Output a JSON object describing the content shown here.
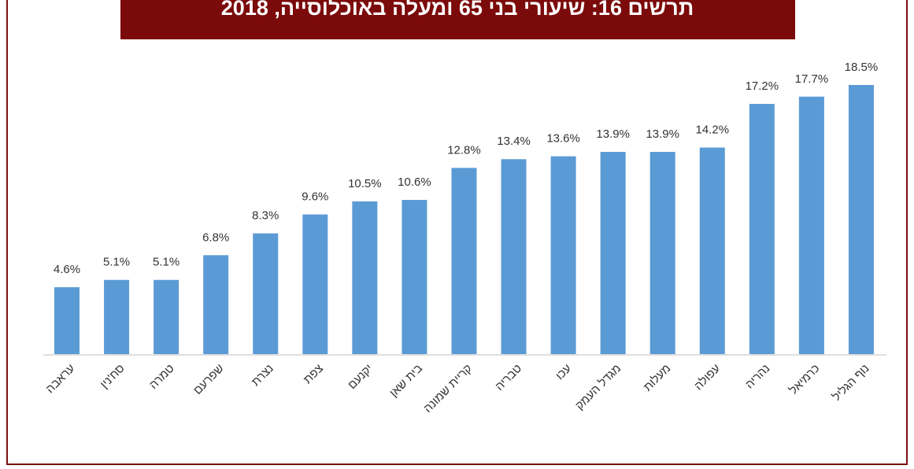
{
  "chart_data": {
    "type": "bar",
    "title": "תרשים 16: שיעורי בני 65 ומעלה באוכלוסייה, 2018",
    "categories": [
      "עראבה",
      "סח'נין",
      "טמרה",
      "שפרעם",
      "נצרת",
      "צפת",
      "יקנעם",
      "בית שאן",
      "קריית שמונה",
      "טבריה",
      "עכו",
      "מגדל העמק",
      "מעלות",
      "עפולה",
      "נהריה",
      "כרמיאל",
      "נוף הגליל"
    ],
    "values": [
      4.6,
      5.1,
      5.1,
      6.8,
      8.3,
      9.6,
      10.5,
      10.6,
      12.8,
      13.4,
      13.6,
      13.9,
      13.9,
      14.2,
      17.2,
      17.7,
      18.5
    ],
    "value_labels": [
      "4.6%",
      "5.1%",
      "5.1%",
      "6.8%",
      "8.3%",
      "9.6%",
      "10.5%",
      "10.6%",
      "12.8%",
      "13.4%",
      "13.6%",
      "13.9%",
      "13.9%",
      "14.2%",
      "17.2%",
      "17.7%",
      "18.5%"
    ],
    "color": "#5b9bd5"
  }
}
